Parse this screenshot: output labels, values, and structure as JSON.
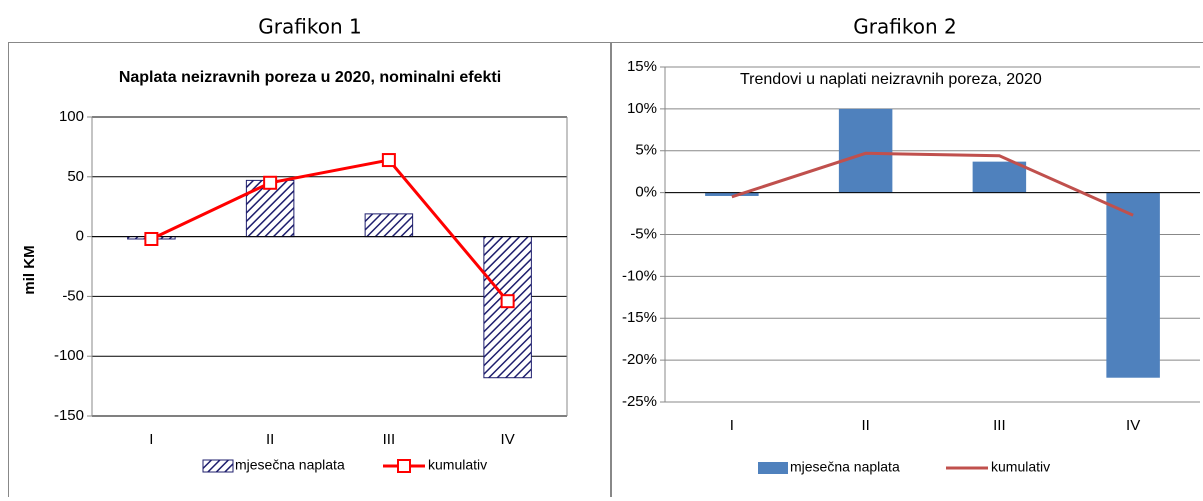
{
  "chart_data": [
    {
      "type": "bar",
      "caption": "Grafikon 1",
      "title": "Naplata neizravnih poreza u 2020, nominalni efekti",
      "ylabel": "mil KM",
      "categories": [
        "I",
        "II",
        "III",
        "IV"
      ],
      "series": [
        {
          "name": "mjesečna naplata",
          "type": "bar",
          "color": "#1f1f6e",
          "pattern": "hatch",
          "values": [
            -2,
            47,
            19,
            -118
          ]
        },
        {
          "name": "kumulativ",
          "type": "line",
          "color": "#ff0000",
          "marker": "square",
          "values": [
            -2,
            45,
            64,
            -54
          ]
        }
      ],
      "ylim": [
        -150,
        100
      ],
      "yticks": [
        -150,
        -100,
        -50,
        0,
        50,
        100
      ],
      "grid": true,
      "legend": "bottom"
    },
    {
      "type": "bar",
      "caption": "Grafikon 2",
      "title": "Trendovi u naplati neizravnih poreza, 2020",
      "categories": [
        "I",
        "II",
        "III",
        "IV"
      ],
      "series": [
        {
          "name": "mjesečna naplata",
          "type": "bar",
          "color": "#4f81bd",
          "values": [
            -0.4,
            10,
            3.7,
            -22.1
          ]
        },
        {
          "name": "kumulativ",
          "type": "line",
          "color": "#c0504d",
          "values": [
            -0.5,
            4.7,
            4.4,
            -2.7
          ]
        }
      ],
      "ylim": [
        -25,
        15
      ],
      "yticks": [
        {
          "value": -25,
          "label": "-25%"
        },
        {
          "value": -20,
          "label": "-20%"
        },
        {
          "value": -15,
          "label": "-15%"
        },
        {
          "value": -10,
          "label": "-10%"
        },
        {
          "value": -5,
          "label": "-5%"
        },
        {
          "value": 0,
          "label": "0%"
        },
        {
          "value": 5,
          "label": "5%"
        },
        {
          "value": 10,
          "label": "10%"
        },
        {
          "value": 15,
          "label": "15%"
        }
      ],
      "grid": true,
      "legend": "bottom"
    }
  ]
}
